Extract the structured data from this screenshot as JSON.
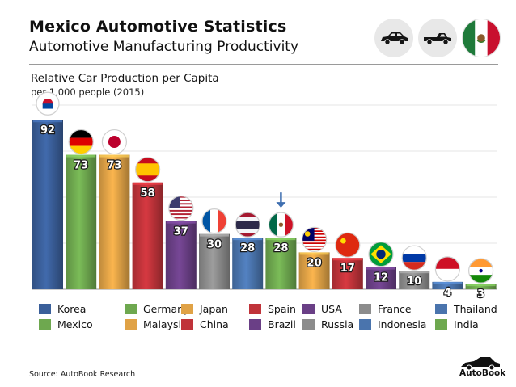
{
  "header": {
    "title": "Mexico Automotive Statistics",
    "subtitle": "Automotive Manufacturing Productivity",
    "icons": [
      "sedan-car-icon",
      "pickup-truck-icon",
      "mexico-flag-icon"
    ]
  },
  "chart_data": {
    "type": "bar",
    "title": "Relative Car Production per Capita",
    "subtitle": "per 1,000 people (2015)",
    "categories": [
      "Korea",
      "Germany",
      "Japan",
      "Spain",
      "USA",
      "France",
      "Thailand",
      "Mexico",
      "Malaysia",
      "China",
      "Brazil",
      "Russia",
      "Indonesia",
      "India"
    ],
    "values": [
      92,
      73,
      73,
      58,
      37,
      30,
      28,
      28,
      20,
      17,
      12,
      10,
      4,
      3
    ],
    "labels": [
      "92",
      "73",
      "73",
      "58",
      "37",
      "30",
      "28",
      "28",
      "20",
      "17",
      "12",
      "10",
      "4",
      "3"
    ],
    "colors": [
      "#3a5f9a",
      "#6ea84f",
      "#e0a246",
      "#c0333a",
      "#6a3f86",
      "#8c8c8c",
      "#4a74ad",
      "#6ea84f",
      "#e0a246",
      "#c0333a",
      "#6a3f86",
      "#8c8c8c",
      "#4a74ad",
      "#6ea84f"
    ],
    "flags": [
      "korea-flag-icon",
      "germany-flag-icon",
      "japan-flag-icon",
      "spain-flag-icon",
      "usa-flag-icon",
      "france-flag-icon",
      "thailand-flag-icon",
      "mexico-flag-icon",
      "malaysia-flag-icon",
      "china-flag-icon",
      "brazil-flag-icon",
      "russia-flag-icon",
      "indonesia-flag-icon",
      "india-flag-icon"
    ],
    "highlight": "Mexico",
    "ylim": [
      0,
      100
    ],
    "grid": true,
    "legend_position": "bottom"
  },
  "legend": [
    {
      "label": "Korea",
      "color": "#3a5f9a"
    },
    {
      "label": "Germany",
      "color": "#6ea84f"
    },
    {
      "label": "Japan",
      "color": "#e0a246"
    },
    {
      "label": "Spain",
      "color": "#c0333a"
    },
    {
      "label": "USA",
      "color": "#6a3f86"
    },
    {
      "label": "France",
      "color": "#8c8c8c"
    },
    {
      "label": "Thailand",
      "color": "#4a74ad"
    },
    {
      "label": "Mexico",
      "color": "#6ea84f"
    },
    {
      "label": "Malaysia",
      "color": "#e0a246"
    },
    {
      "label": "China",
      "color": "#c0333a"
    },
    {
      "label": "Brazil",
      "color": "#6a3f86"
    },
    {
      "label": "Russia",
      "color": "#8c8c8c"
    },
    {
      "label": "Indonesia",
      "color": "#4a74ad"
    },
    {
      "label": "India",
      "color": "#6ea84f"
    }
  ],
  "footer": {
    "source": "Source: AutoBook Research",
    "logo_text": "AutoBook"
  }
}
